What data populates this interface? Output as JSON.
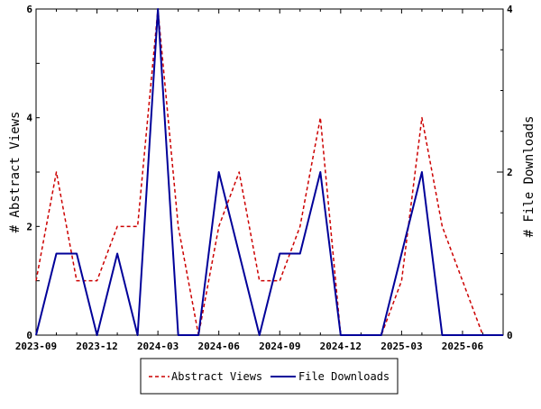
{
  "chart_data": {
    "type": "line",
    "title": "",
    "x": [
      "2023-09",
      "2023-10",
      "2023-11",
      "2023-12",
      "2024-01",
      "2024-02",
      "2024-03",
      "2024-04",
      "2024-05",
      "2024-06",
      "2024-07",
      "2024-08",
      "2024-09",
      "2024-10",
      "2024-11",
      "2024-12",
      "2025-01",
      "2025-02",
      "2025-03",
      "2025-04",
      "2025-05",
      "2025-06",
      "2025-07",
      "2025-08"
    ],
    "x_tick_labels": [
      "2023-09",
      "2023-12",
      "2024-03",
      "2024-06",
      "2024-09",
      "2024-12",
      "2025-03",
      "2025-06"
    ],
    "ylabel_left": "# Abstract Views",
    "ylabel_right": "# File Downloads",
    "ylim_left": [
      0,
      6
    ],
    "ylim_right": [
      0,
      4
    ],
    "yticks_left": [
      "0",
      "2",
      "4",
      "6"
    ],
    "yticks_right": [
      "0",
      "2",
      "4"
    ],
    "grid": false,
    "legend_position": "bottom",
    "series": [
      {
        "name": "Abstract Views",
        "axis": "left",
        "style": "dashed",
        "color": "#cc0000",
        "values": [
          1,
          3,
          1,
          1,
          2,
          2,
          6,
          2,
          0,
          2,
          3,
          1,
          1,
          2,
          4,
          0,
          0,
          0,
          1,
          4,
          2,
          1,
          0,
          0
        ]
      },
      {
        "name": "File Downloads",
        "axis": "right",
        "style": "solid",
        "color": "#000099",
        "values": [
          0,
          1,
          1,
          0,
          1,
          0,
          4,
          0,
          0,
          2,
          1,
          0,
          1,
          1,
          2,
          0,
          0,
          0,
          1,
          2,
          0,
          0,
          0,
          0
        ]
      }
    ]
  }
}
